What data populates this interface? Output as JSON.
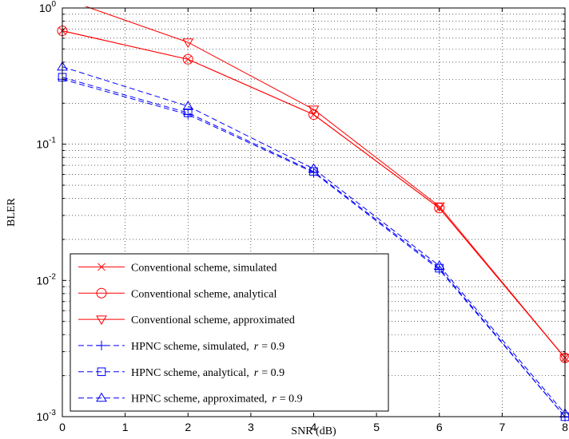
{
  "chart_data": {
    "type": "line",
    "xlabel": "SNR (dB)",
    "ylabel": "BLER",
    "xlim": [
      0,
      8
    ],
    "ylim": [
      0.001,
      1
    ],
    "xscale": "linear",
    "yscale": "log",
    "xticks": [
      0,
      1,
      2,
      3,
      4,
      5,
      6,
      7,
      8
    ],
    "yticks": [
      {
        "value": 1,
        "base": "10",
        "exp": "0"
      },
      {
        "value": 0.1,
        "base": "10",
        "exp": "-1"
      },
      {
        "value": 0.01,
        "base": "10",
        "exp": "-2"
      },
      {
        "value": 0.001,
        "base": "10",
        "exp": "-3"
      }
    ],
    "grid": true,
    "legend_position": "bottom-left",
    "series": [
      {
        "name": "Conventional scheme, simulated",
        "color": "#ff0000",
        "dash": "solid",
        "marker": "x",
        "x": [
          0,
          2,
          4,
          6,
          8
        ],
        "y": [
          0.68,
          0.42,
          0.165,
          0.034,
          0.0027
        ]
      },
      {
        "name": "Conventional scheme, analytical",
        "color": "#ff0000",
        "dash": "solid",
        "marker": "circle",
        "x": [
          0,
          2,
          4,
          6,
          8
        ],
        "y": [
          0.68,
          0.42,
          0.165,
          0.034,
          0.0027
        ]
      },
      {
        "name": "Conventional scheme, approximated",
        "color": "#ff0000",
        "dash": "solid",
        "marker": "triangle-down",
        "x": [
          0,
          2,
          4,
          6,
          8
        ],
        "y": [
          1.18,
          0.56,
          0.18,
          0.035,
          0.0027
        ]
      },
      {
        "name": "HPNC scheme, simulated,",
        "name_suffix": "= 0.9",
        "name_var": "r",
        "color": "#0000ff",
        "dash": "dashed",
        "marker": "plus",
        "x": [
          0,
          2,
          4,
          6,
          8
        ],
        "y": [
          0.3,
          0.165,
          0.062,
          0.012,
          0.001
        ]
      },
      {
        "name": "HPNC scheme, analytical,",
        "name_suffix": "= 0.9",
        "name_var": "r",
        "color": "#0000ff",
        "dash": "dashed",
        "marker": "square",
        "x": [
          0,
          2,
          4,
          6,
          8
        ],
        "y": [
          0.31,
          0.17,
          0.063,
          0.0123,
          0.001
        ]
      },
      {
        "name": "HPNC scheme, approximated,",
        "name_suffix": "= 0.9",
        "name_var": "r",
        "color": "#0000ff",
        "dash": "dashed",
        "marker": "triangle-up",
        "x": [
          0,
          2,
          4,
          6,
          8
        ],
        "y": [
          0.37,
          0.19,
          0.066,
          0.0128,
          0.00105
        ]
      }
    ]
  }
}
